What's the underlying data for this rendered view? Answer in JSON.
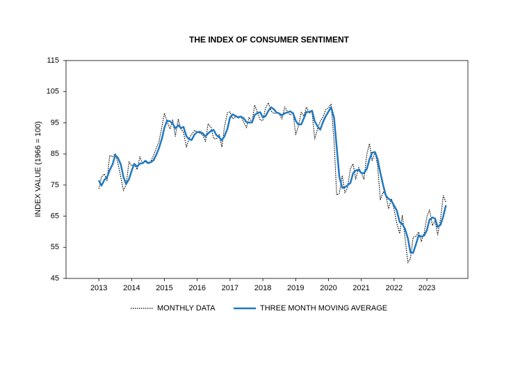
{
  "chart_data": {
    "type": "line",
    "title": "THE INDEX OF CONSUMER SENTIMENT",
    "y_label": "INDEX VALUE (1966 = 100)",
    "xlim": [
      2012,
      2024.25
    ],
    "xticks": [
      2013,
      2014,
      2015,
      2016,
      2017,
      2018,
      2019,
      2020,
      2021,
      2022,
      2023
    ],
    "ylim": [
      45,
      115
    ],
    "yticks": [
      45,
      55,
      65,
      75,
      85,
      95,
      105,
      115
    ],
    "grid": false,
    "legend": "bottom",
    "x": [
      2013.0,
      2013.08,
      2013.17,
      2013.25,
      2013.33,
      2013.42,
      2013.5,
      2013.58,
      2013.67,
      2013.75,
      2013.83,
      2013.92,
      2014.0,
      2014.08,
      2014.17,
      2014.25,
      2014.33,
      2014.42,
      2014.5,
      2014.58,
      2014.67,
      2014.75,
      2014.83,
      2014.92,
      2015.0,
      2015.08,
      2015.17,
      2015.25,
      2015.33,
      2015.42,
      2015.5,
      2015.58,
      2015.67,
      2015.75,
      2015.83,
      2015.92,
      2016.0,
      2016.08,
      2016.17,
      2016.25,
      2016.33,
      2016.42,
      2016.5,
      2016.58,
      2016.67,
      2016.75,
      2016.83,
      2016.92,
      2017.0,
      2017.08,
      2017.17,
      2017.25,
      2017.33,
      2017.42,
      2017.5,
      2017.58,
      2017.67,
      2017.75,
      2017.83,
      2017.92,
      2018.0,
      2018.08,
      2018.17,
      2018.25,
      2018.33,
      2018.42,
      2018.5,
      2018.58,
      2018.67,
      2018.75,
      2018.83,
      2018.92,
      2019.0,
      2019.08,
      2019.17,
      2019.25,
      2019.33,
      2019.42,
      2019.5,
      2019.58,
      2019.67,
      2019.75,
      2019.83,
      2019.92,
      2020.0,
      2020.08,
      2020.17,
      2020.25,
      2020.33,
      2020.42,
      2020.5,
      2020.58,
      2020.67,
      2020.75,
      2020.83,
      2020.92,
      2021.0,
      2021.08,
      2021.17,
      2021.25,
      2021.33,
      2021.42,
      2021.5,
      2021.58,
      2021.67,
      2021.75,
      2021.83,
      2021.92,
      2022.0,
      2022.08,
      2022.17,
      2022.25,
      2022.33,
      2022.42,
      2022.5,
      2022.58,
      2022.67,
      2022.75,
      2022.83,
      2022.92,
      2023.0,
      2023.08,
      2023.17,
      2023.25,
      2023.33,
      2023.42,
      2023.5,
      2023.58
    ],
    "series": [
      {
        "name": "MONTHLY DATA",
        "color": "#000000",
        "style": "dotted",
        "values": [
          73.8,
          77.6,
          78.6,
          76.4,
          84.5,
          84.1,
          85.1,
          82.1,
          77.5,
          73.2,
          75.1,
          82.5,
          81.2,
          81.6,
          80.0,
          84.1,
          81.9,
          82.5,
          81.8,
          82.5,
          84.6,
          86.9,
          88.8,
          93.6,
          98.1,
          95.4,
          93.0,
          95.9,
          90.7,
          96.1,
          93.1,
          91.9,
          87.2,
          90.0,
          91.3,
          92.6,
          92.0,
          91.7,
          91.0,
          89.0,
          94.7,
          93.5,
          90.0,
          89.8,
          91.2,
          87.2,
          93.8,
          98.2,
          98.5,
          96.3,
          96.9,
          97.0,
          97.1,
          95.1,
          93.4,
          96.8,
          95.1,
          100.7,
          98.5,
          95.9,
          95.7,
          99.7,
          101.4,
          98.8,
          98.0,
          98.2,
          97.9,
          96.2,
          100.1,
          98.6,
          97.5,
          98.3,
          91.2,
          93.8,
          98.4,
          97.2,
          100.0,
          98.2,
          98.4,
          89.8,
          93.2,
          95.5,
          96.8,
          99.3,
          99.8,
          101.0,
          89.1,
          71.8,
          72.3,
          78.1,
          72.5,
          74.1,
          80.4,
          81.8,
          76.9,
          80.7,
          79.0,
          76.8,
          84.9,
          88.3,
          82.9,
          85.5,
          81.2,
          70.3,
          72.8,
          71.7,
          67.4,
          70.6,
          67.2,
          62.8,
          59.4,
          65.2,
          58.4,
          50.0,
          51.5,
          58.2,
          58.6,
          59.9,
          56.8,
          59.7,
          64.9,
          67.0,
          62.0,
          63.5,
          59.0,
          64.4,
          71.6,
          69.5
        ]
      },
      {
        "name": "THREE MONTH MOVING AVERAGE",
        "color": "#1f78c1",
        "style": "solid",
        "values": [
          76.5,
          74.8,
          76.7,
          77.5,
          79.8,
          81.7,
          84.6,
          83.8,
          81.6,
          77.6,
          75.3,
          76.9,
          79.6,
          81.8,
          80.9,
          81.9,
          82.0,
          82.8,
          82.1,
          82.3,
          83.0,
          84.7,
          86.8,
          89.8,
          93.5,
          95.7,
          95.5,
          94.8,
          93.2,
          94.2,
          93.3,
          93.7,
          90.7,
          89.7,
          89.5,
          91.3,
          92.0,
          92.1,
          91.6,
          90.6,
          91.6,
          92.4,
          92.7,
          91.1,
          90.3,
          89.4,
          90.7,
          93.1,
          96.8,
          97.7,
          97.2,
          96.7,
          97.0,
          96.4,
          95.2,
          95.1,
          95.1,
          97.5,
          98.1,
          98.4,
          96.7,
          97.1,
          98.9,
          100.0,
          99.4,
          98.3,
          98.0,
          97.4,
          98.1,
          98.3,
          98.7,
          98.1,
          95.7,
          94.4,
          94.5,
          96.5,
          98.5,
          98.5,
          98.9,
          95.5,
          93.8,
          92.8,
          95.2,
          97.2,
          98.6,
          100.0,
          96.6,
          87.3,
          77.7,
          74.1,
          74.3,
          74.9,
          75.7,
          78.8,
          79.7,
          79.8,
          78.9,
          78.8,
          80.2,
          83.3,
          85.4,
          85.6,
          83.2,
          79.0,
          74.8,
          71.6,
          70.6,
          69.9,
          68.4,
          66.9,
          63.1,
          62.5,
          61.0,
          57.9,
          53.3,
          53.2,
          56.1,
          58.9,
          58.4,
          58.8,
          60.5,
          63.9,
          64.6,
          64.2,
          61.5,
          62.3,
          65.0,
          68.5
        ]
      }
    ]
  }
}
